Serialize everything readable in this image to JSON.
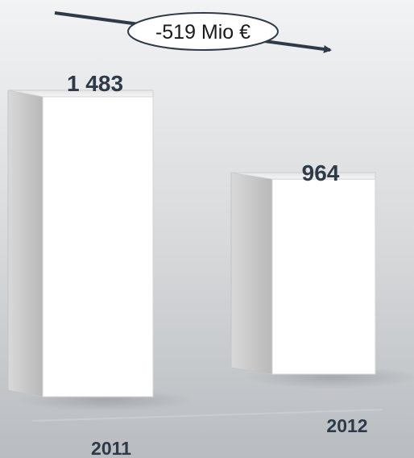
{
  "chart_data": {
    "type": "bar",
    "categories": [
      "2011",
      "2012"
    ],
    "values": [
      1483,
      964
    ],
    "value_labels": [
      "1 483",
      "964"
    ],
    "annotation": "-519 Mio €",
    "title": "",
    "xlabel": "",
    "ylabel": ""
  }
}
